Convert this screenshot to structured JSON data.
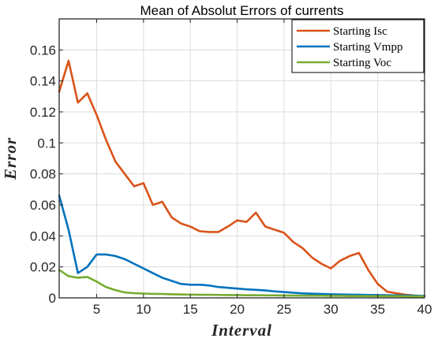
{
  "chart_data": {
    "type": "line",
    "title": "Mean of Absolut Errors of currents",
    "xlabel": "Interval",
    "ylabel": "Error",
    "xlim": [
      1,
      40
    ],
    "ylim": [
      0,
      0.18
    ],
    "xticks": [
      5,
      10,
      15,
      20,
      25,
      30,
      35,
      40
    ],
    "xtick_labels": [
      "5",
      "10",
      "15",
      "20",
      "25",
      "30",
      "35",
      "40"
    ],
    "yticks": [
      0,
      0.02,
      0.04,
      0.06,
      0.08,
      0.1,
      0.12,
      0.14,
      0.16
    ],
    "ytick_labels": [
      "0",
      "0.02",
      "0.04",
      "0.06",
      "0.08",
      "0.1",
      "0.12",
      "0.14",
      "0.16"
    ],
    "grid": true,
    "legend_position": "top-right",
    "x": [
      1,
      2,
      3,
      4,
      5,
      6,
      7,
      8,
      9,
      10,
      11,
      12,
      13,
      14,
      15,
      16,
      17,
      18,
      19,
      20,
      21,
      22,
      23,
      24,
      25,
      26,
      27,
      28,
      29,
      30,
      31,
      32,
      33,
      34,
      35,
      36,
      37,
      38,
      39,
      40
    ],
    "series": [
      {
        "name": "Starting Isc",
        "color": "#d95319",
        "values": [
          0.133,
          0.153,
          0.126,
          0.132,
          0.118,
          0.102,
          0.088,
          0.08,
          0.072,
          0.074,
          0.06,
          0.062,
          0.052,
          0.048,
          0.046,
          0.043,
          0.0425,
          0.0425,
          0.046,
          0.05,
          0.049,
          0.055,
          0.046,
          0.044,
          0.042,
          0.036,
          0.032,
          0.026,
          0.022,
          0.019,
          0.024,
          0.027,
          0.029,
          0.018,
          0.009,
          0.004,
          0.003,
          0.002,
          0.0015,
          0.001
        ]
      },
      {
        "name": "Starting Vmpp",
        "color": "#0072bd",
        "values": [
          0.066,
          0.044,
          0.016,
          0.02,
          0.028,
          0.028,
          0.027,
          0.025,
          0.022,
          0.019,
          0.016,
          0.013,
          0.011,
          0.009,
          0.0085,
          0.0085,
          0.008,
          0.007,
          0.0065,
          0.006,
          0.0055,
          0.0052,
          0.0048,
          0.0042,
          0.0038,
          0.0033,
          0.0029,
          0.0027,
          0.0025,
          0.0023,
          0.0022,
          0.0021,
          0.002,
          0.0019,
          0.0018,
          0.0017,
          0.0016,
          0.0015,
          0.0014,
          0.0013
        ]
      },
      {
        "name": "Starting Voc",
        "color": "#77ac30",
        "values": [
          0.018,
          0.014,
          0.013,
          0.0135,
          0.0105,
          0.007,
          0.005,
          0.0035,
          0.003,
          0.0028,
          0.0026,
          0.0025,
          0.0023,
          0.0022,
          0.0021,
          0.002,
          0.002,
          0.0019,
          0.0018,
          0.0018,
          0.0017,
          0.0017,
          0.0016,
          0.0016,
          0.0015,
          0.0015,
          0.0014,
          0.0014,
          0.0014,
          0.0013,
          0.0013,
          0.0012,
          0.0012,
          0.0012,
          0.0011,
          0.0011,
          0.0011,
          0.001,
          0.001,
          0.001
        ]
      }
    ]
  }
}
